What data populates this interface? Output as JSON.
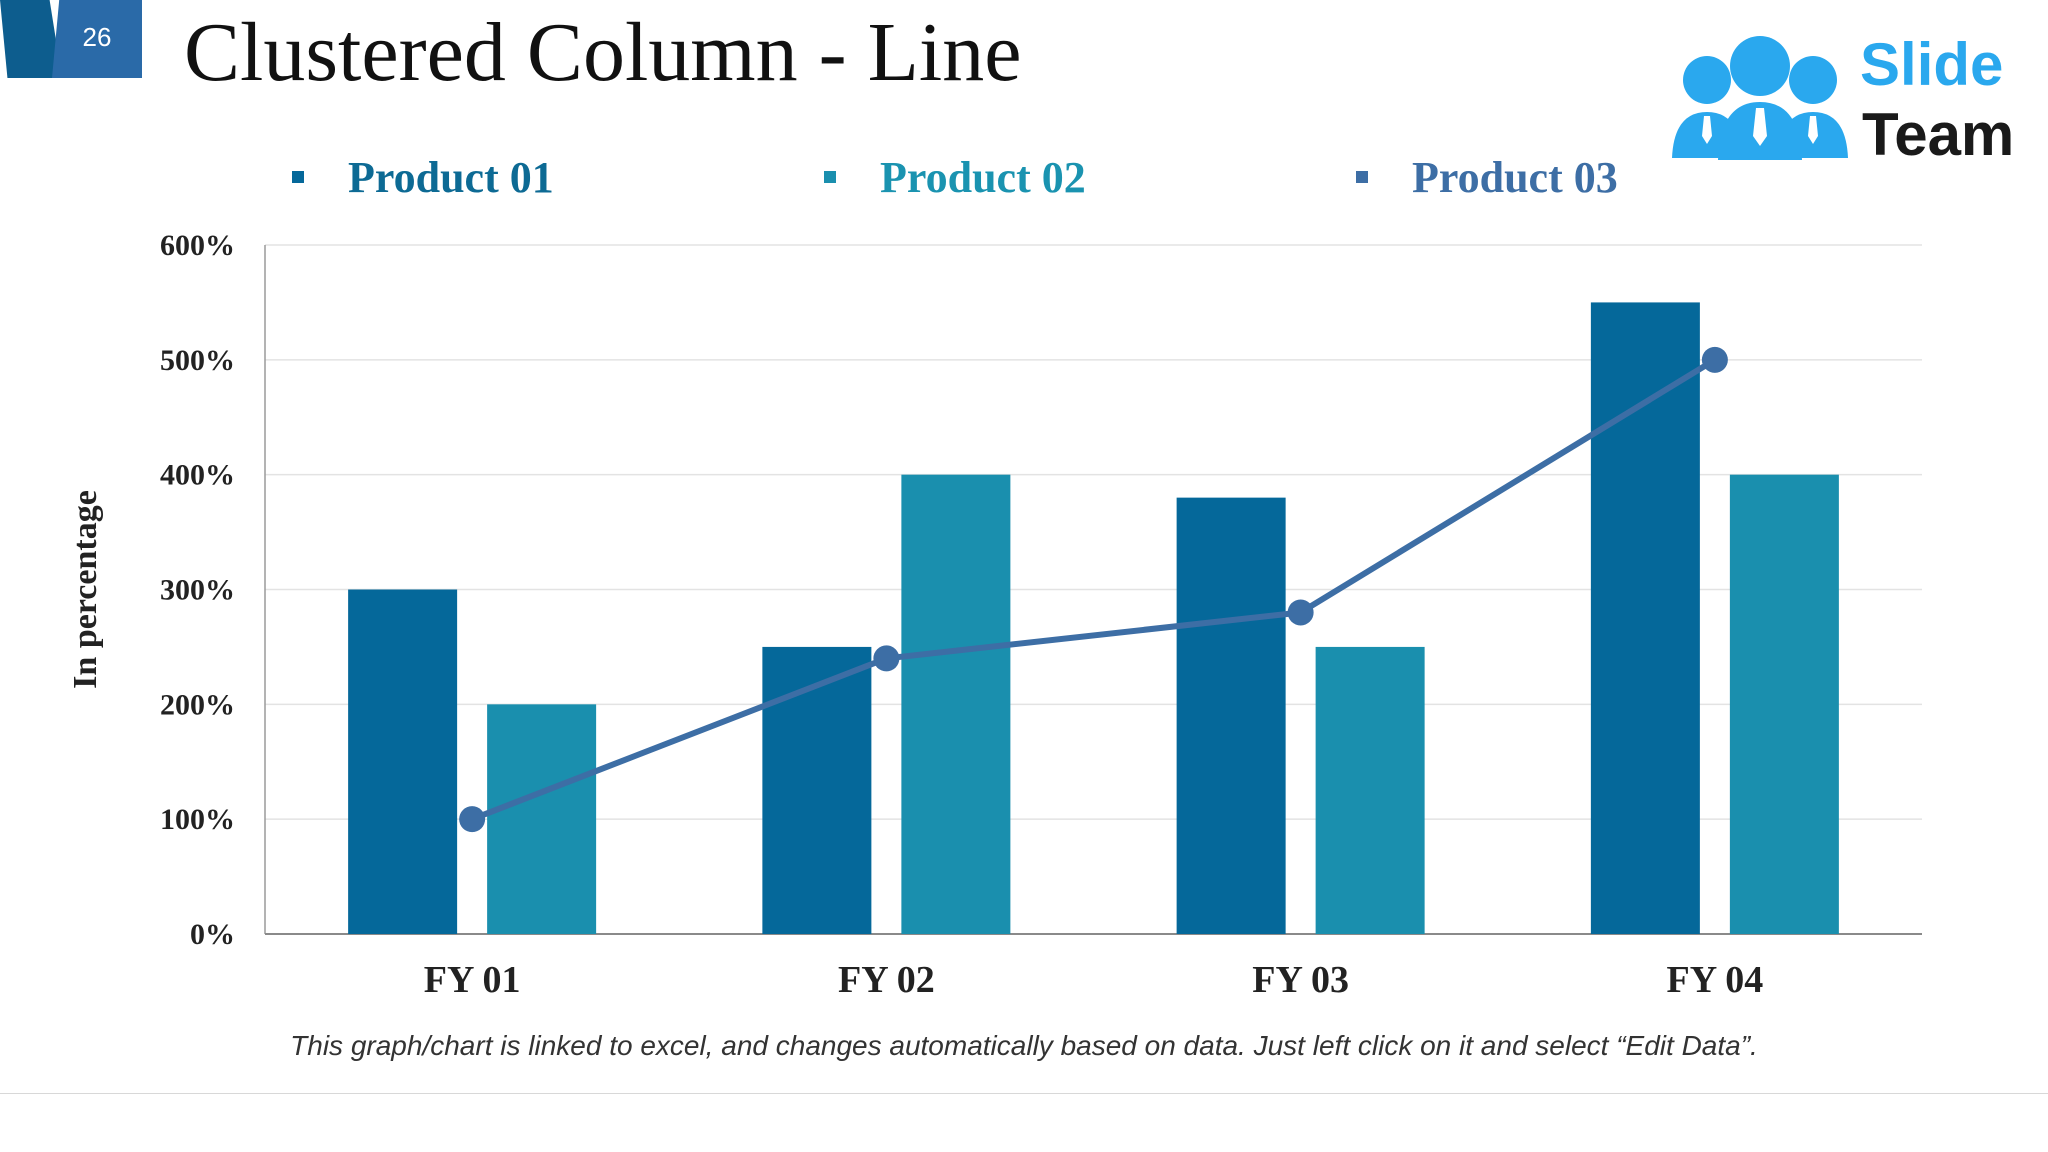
{
  "slide": {
    "number": "26",
    "title": "Clustered Column - Line"
  },
  "logo": {
    "line1": "Slide",
    "line2": "Team"
  },
  "footnote": "This graph/chart is linked to excel, and changes automatically based on data. Just left click on it and select “Edit Data”.",
  "colors": {
    "product01": "#05689a",
    "product02": "#1a8fae",
    "product03": "#3d6ea5",
    "legend01_text": "#0d6a94",
    "legend02_text": "#1a93b0",
    "legend03_text": "#3d6ea5"
  },
  "chart_data": {
    "type": "bar",
    "categories": [
      "FY 01",
      "FY 02",
      "FY 03",
      "FY 04"
    ],
    "series": [
      {
        "name": "Product 01",
        "kind": "bar",
        "values": [
          300,
          250,
          380,
          550
        ]
      },
      {
        "name": "Product 02",
        "kind": "bar",
        "values": [
          200,
          400,
          250,
          400
        ]
      },
      {
        "name": "Product 03",
        "kind": "line",
        "values": [
          100,
          240,
          280,
          500
        ]
      }
    ],
    "title": "",
    "xlabel": "",
    "ylabel": "In percentage",
    "ylim": [
      0,
      600
    ],
    "yticks": [
      0,
      100,
      200,
      300,
      400,
      500,
      600
    ],
    "ytick_labels": [
      "0%",
      "100%",
      "200%",
      "300%",
      "400%",
      "500%",
      "600%"
    ],
    "grid": true,
    "legend": "top",
    "legend_entries": [
      "Product 01",
      "Product 02",
      "Product 03"
    ]
  }
}
